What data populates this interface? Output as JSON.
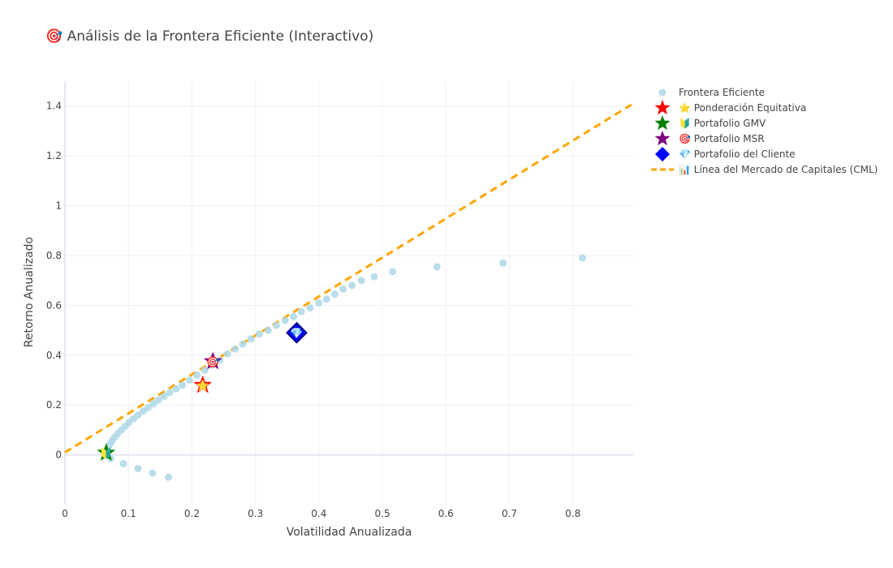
{
  "chart_data": {
    "type": "scatter",
    "title": "🎯 Análisis de la Frontera Eficiente (Interactivo)",
    "xlabel": "Volatilidad Anualizada",
    "ylabel": "Retorno Anualizado",
    "xlim": [
      0,
      0.895
    ],
    "ylim": [
      -0.2,
      1.5
    ],
    "grid": true,
    "legend_position": "top-right",
    "x_ticks": [
      0,
      0.1,
      0.2,
      0.3,
      0.4,
      0.5,
      0.6,
      0.7,
      0.8
    ],
    "y_ticks": [
      0,
      0.2,
      0.4,
      0.6,
      0.8,
      1,
      1.2,
      1.4
    ],
    "series": [
      {
        "name": "Frontera Eficiente",
        "kind": "markers",
        "marker": "circle",
        "color": "#add8e6",
        "points": [
          [
            0.07,
            0.04
          ],
          [
            0.074,
            0.055
          ],
          [
            0.078,
            0.07
          ],
          [
            0.083,
            0.085
          ],
          [
            0.089,
            0.1
          ],
          [
            0.095,
            0.115
          ],
          [
            0.101,
            0.13
          ],
          [
            0.108,
            0.145
          ],
          [
            0.115,
            0.16
          ],
          [
            0.123,
            0.175
          ],
          [
            0.131,
            0.19
          ],
          [
            0.139,
            0.205
          ],
          [
            0.147,
            0.22
          ],
          [
            0.156,
            0.235
          ],
          [
            0.165,
            0.25
          ],
          [
            0.175,
            0.265
          ],
          [
            0.185,
            0.28
          ],
          [
            0.196,
            0.3
          ],
          [
            0.208,
            0.32
          ],
          [
            0.22,
            0.34
          ],
          [
            0.232,
            0.36
          ],
          [
            0.244,
            0.38
          ],
          [
            0.256,
            0.405
          ],
          [
            0.268,
            0.425
          ],
          [
            0.28,
            0.445
          ],
          [
            0.293,
            0.465
          ],
          [
            0.306,
            0.485
          ],
          [
            0.32,
            0.5
          ],
          [
            0.333,
            0.52
          ],
          [
            0.347,
            0.54
          ],
          [
            0.36,
            0.555
          ],
          [
            0.372,
            0.575
          ],
          [
            0.386,
            0.59
          ],
          [
            0.4,
            0.61
          ],
          [
            0.412,
            0.625
          ],
          [
            0.425,
            0.645
          ],
          [
            0.438,
            0.665
          ],
          [
            0.452,
            0.68
          ],
          [
            0.467,
            0.7
          ],
          [
            0.487,
            0.715
          ],
          [
            0.516,
            0.735
          ],
          [
            0.586,
            0.755
          ],
          [
            0.69,
            0.77
          ],
          [
            0.815,
            0.79
          ],
          [
            0.072,
            -0.015
          ],
          [
            0.092,
            -0.035
          ],
          [
            0.115,
            -0.055
          ],
          [
            0.138,
            -0.073
          ],
          [
            0.163,
            -0.09
          ]
        ]
      },
      {
        "name": "Línea del Mercado de Capitales (CML)",
        "kind": "line",
        "color": "#ffa500",
        "points": [
          [
            0,
            0.01
          ],
          [
            0.895,
            1.41
          ]
        ]
      }
    ],
    "portfolios": [
      {
        "name": "Ponderación Equitativa",
        "emoji": "⭐",
        "marker": "star",
        "color": "#ff0000",
        "x": 0.217,
        "y": 0.28
      },
      {
        "name": "Portafolio GMV",
        "emoji": "🔰",
        "marker": "star",
        "color": "#008000",
        "x": 0.065,
        "y": 0.008
      },
      {
        "name": "Portafolio MSR",
        "emoji": "🎯",
        "marker": "star",
        "color": "#800080",
        "x": 0.233,
        "y": 0.375
      },
      {
        "name": "Portafolio del Cliente",
        "emoji": "💎",
        "marker": "diamond",
        "color": "#0000ff",
        "x": 0.365,
        "y": 0.49
      }
    ],
    "legend": [
      {
        "label": "Frontera Eficiente",
        "symbol": "circle",
        "color": "#add8e6"
      },
      {
        "label": "⭐ Ponderación Equitativa",
        "symbol": "star",
        "color": "#ff0000"
      },
      {
        "label": "🔰 Portafolio GMV",
        "symbol": "star",
        "color": "#008000"
      },
      {
        "label": "🎯 Portafolio MSR",
        "symbol": "star",
        "color": "#800080"
      },
      {
        "label": "💎 Portafolio del Cliente",
        "symbol": "diamond",
        "color": "#0000ff"
      },
      {
        "label": "📊 Línea del Mercado de Capitales (CML)",
        "symbol": "dash",
        "color": "#ffa500"
      }
    ]
  }
}
